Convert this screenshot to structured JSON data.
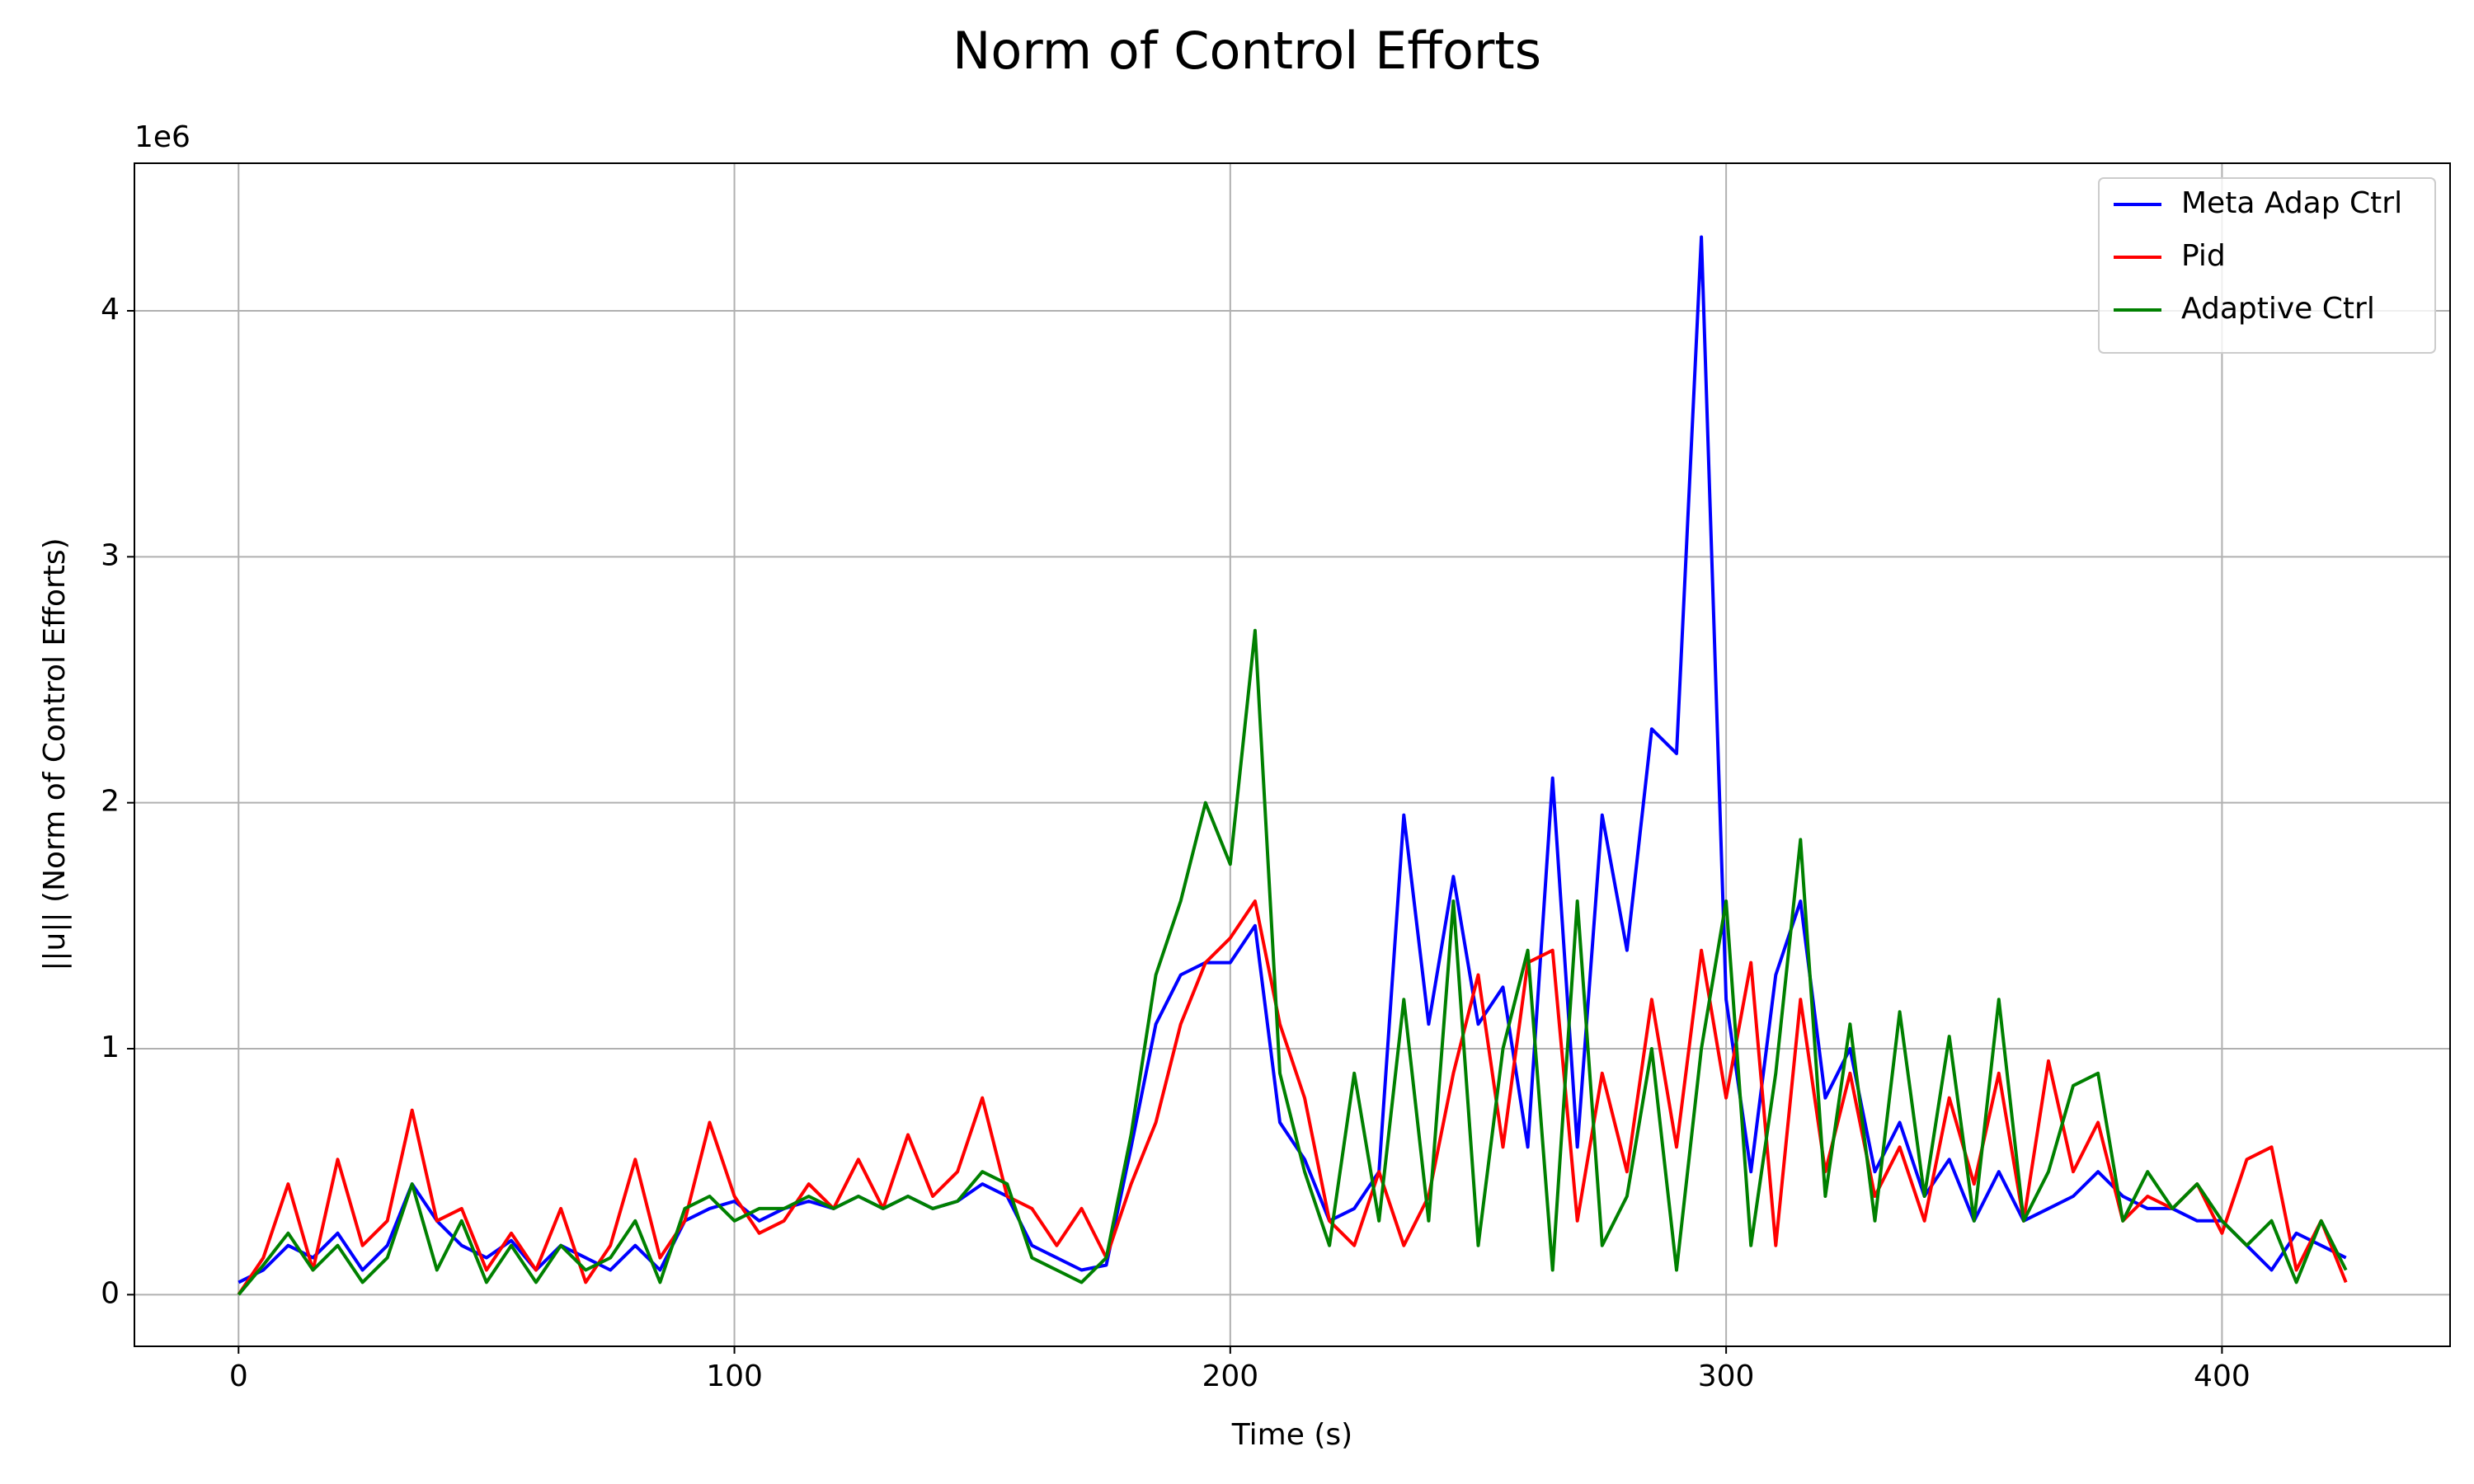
{
  "chart_data": {
    "type": "line",
    "title": "Norm of Control Efforts",
    "x_label": "Time (s)",
    "y_label": "||u|| (Norm of Control Efforts)",
    "y_offset_label": "1e6",
    "x": [
      0,
      5,
      10,
      15,
      20,
      25,
      30,
      35,
      40,
      45,
      50,
      55,
      60,
      65,
      70,
      75,
      80,
      85,
      90,
      95,
      100,
      105,
      110,
      115,
      120,
      125,
      130,
      135,
      140,
      145,
      150,
      155,
      160,
      165,
      170,
      175,
      180,
      185,
      190,
      195,
      200,
      205,
      210,
      215,
      220,
      225,
      230,
      235,
      240,
      245,
      250,
      255,
      260,
      265,
      270,
      275,
      280,
      285,
      290,
      295,
      300,
      305,
      310,
      315,
      320,
      325,
      330,
      335,
      340,
      345,
      350,
      355,
      360,
      365,
      370,
      375,
      380,
      385,
      390,
      395,
      400,
      405,
      410,
      415,
      420,
      425
    ],
    "series": [
      {
        "name": "Meta Adap Ctrl",
        "color": "#0000ff",
        "values": [
          0.05,
          0.1,
          0.2,
          0.15,
          0.25,
          0.1,
          0.2,
          0.45,
          0.3,
          0.2,
          0.15,
          0.22,
          0.1,
          0.2,
          0.15,
          0.1,
          0.2,
          0.1,
          0.3,
          0.35,
          0.38,
          0.3,
          0.35,
          0.38,
          0.35,
          0.4,
          0.35,
          0.4,
          0.35,
          0.38,
          0.45,
          0.4,
          0.2,
          0.15,
          0.1,
          0.12,
          0.6,
          1.1,
          1.3,
          1.35,
          1.35,
          1.5,
          0.7,
          0.55,
          0.3,
          0.35,
          0.5,
          1.95,
          1.1,
          1.7,
          1.1,
          1.25,
          0.6,
          2.1,
          0.6,
          1.95,
          1.4,
          2.3,
          2.2,
          4.3,
          1.2,
          0.5,
          1.3,
          1.6,
          0.8,
          1.0,
          0.5,
          0.7,
          0.4,
          0.55,
          0.3,
          0.5,
          0.3,
          0.35,
          0.4,
          0.5,
          0.4,
          0.35,
          0.35,
          0.3,
          0.3,
          0.2,
          0.1,
          0.25,
          0.2,
          0.15
        ]
      },
      {
        "name": "Pid",
        "color": "#ff0000",
        "values": [
          0.0,
          0.15,
          0.45,
          0.1,
          0.55,
          0.2,
          0.3,
          0.75,
          0.3,
          0.35,
          0.1,
          0.25,
          0.1,
          0.35,
          0.05,
          0.2,
          0.55,
          0.15,
          0.3,
          0.7,
          0.4,
          0.25,
          0.3,
          0.45,
          0.35,
          0.55,
          0.35,
          0.65,
          0.4,
          0.5,
          0.8,
          0.4,
          0.35,
          0.2,
          0.35,
          0.15,
          0.45,
          0.7,
          1.1,
          1.35,
          1.45,
          1.6,
          1.1,
          0.8,
          0.3,
          0.2,
          0.5,
          0.2,
          0.4,
          0.9,
          1.3,
          0.6,
          1.35,
          1.4,
          0.3,
          0.9,
          0.5,
          1.2,
          0.6,
          1.4,
          0.8,
          1.35,
          0.2,
          1.2,
          0.5,
          0.9,
          0.4,
          0.6,
          0.3,
          0.8,
          0.45,
          0.9,
          0.3,
          0.95,
          0.5,
          0.7,
          0.3,
          0.4,
          0.35,
          0.45,
          0.25,
          0.55,
          0.6,
          0.1,
          0.3,
          0.05
        ]
      },
      {
        "name": "Adaptive Ctrl",
        "color": "#008000",
        "values": [
          0.0,
          0.12,
          0.25,
          0.1,
          0.2,
          0.05,
          0.15,
          0.45,
          0.1,
          0.3,
          0.05,
          0.2,
          0.05,
          0.2,
          0.1,
          0.15,
          0.3,
          0.05,
          0.35,
          0.4,
          0.3,
          0.35,
          0.35,
          0.4,
          0.35,
          0.4,
          0.35,
          0.4,
          0.35,
          0.38,
          0.5,
          0.45,
          0.15,
          0.1,
          0.05,
          0.15,
          0.65,
          1.3,
          1.6,
          2.0,
          1.75,
          2.7,
          0.9,
          0.5,
          0.2,
          0.9,
          0.3,
          1.2,
          0.3,
          1.6,
          0.2,
          1.0,
          1.4,
          0.1,
          1.6,
          0.2,
          0.4,
          1.0,
          0.1,
          1.0,
          1.6,
          0.2,
          0.9,
          1.85,
          0.4,
          1.1,
          0.3,
          1.15,
          0.4,
          1.05,
          0.3,
          1.2,
          0.3,
          0.5,
          0.85,
          0.9,
          0.3,
          0.5,
          0.35,
          0.45,
          0.3,
          0.2,
          0.3,
          0.05,
          0.3,
          0.1
        ]
      }
    ],
    "xlim": [
      -21,
      446
    ],
    "xticks": [
      0,
      100,
      200,
      300,
      400
    ],
    "ylim": [
      -0.21,
      4.6
    ],
    "yticks": [
      0,
      1,
      2,
      3,
      4
    ],
    "grid": true,
    "legend": "upper right"
  }
}
